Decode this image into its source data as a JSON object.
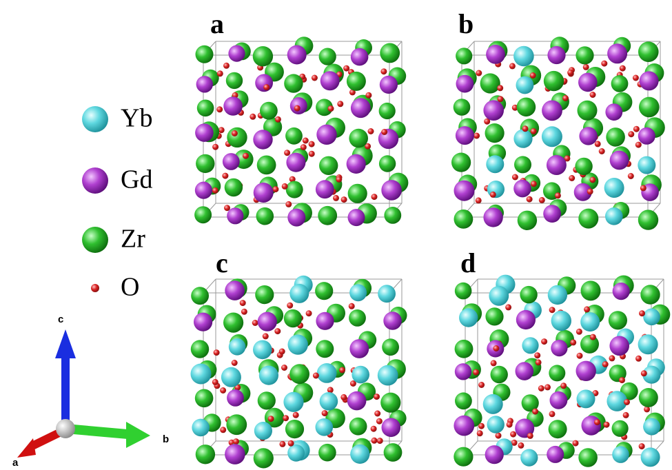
{
  "panels": [
    "a",
    "b",
    "c",
    "d"
  ],
  "legend": [
    "Yb",
    "Gd",
    "Zr",
    "O"
  ],
  "axes": {
    "c": "c",
    "b": "b",
    "a": "a"
  }
}
